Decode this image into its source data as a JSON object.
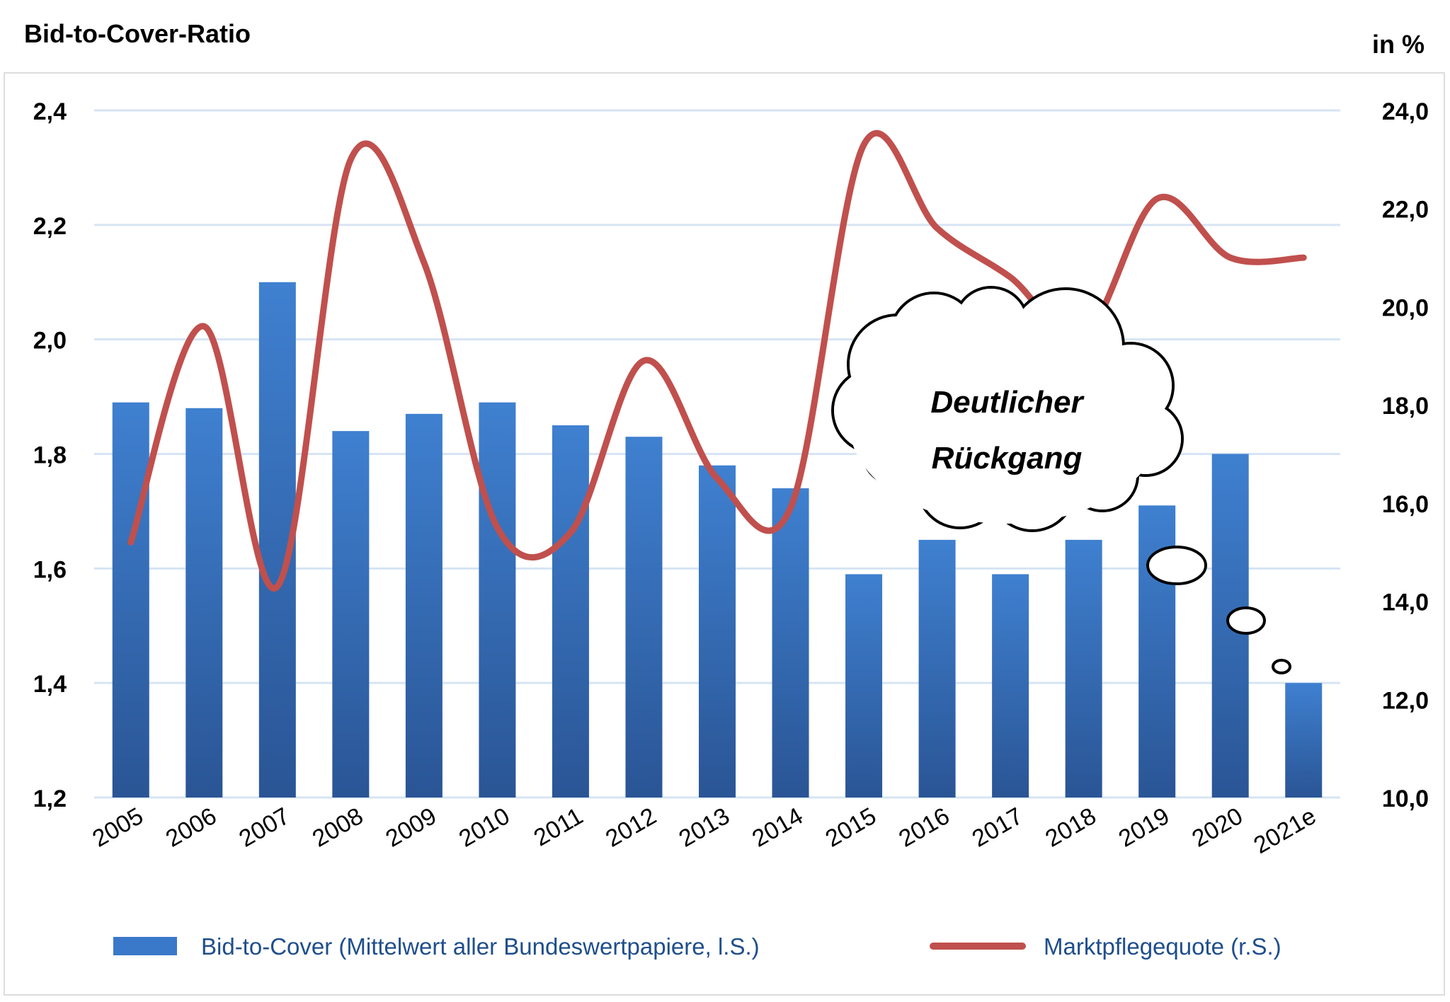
{
  "chart_data": {
    "type": "bar",
    "title": "Bid-to-Cover-Ratio",
    "right_axis_unit": "in %",
    "categories": [
      "2005",
      "2006",
      "2007",
      "2008",
      "2009",
      "2010",
      "2011",
      "2012",
      "2013",
      "2014",
      "2015",
      "2016",
      "2017",
      "2018",
      "2019",
      "2020",
      "2021e"
    ],
    "series": [
      {
        "name": "Bid-to-Cover (Mittelwert aller Bundeswertpapiere, l.S.)",
        "type": "bar",
        "axis": "left",
        "color": "#3a78c9",
        "values": [
          1.89,
          1.88,
          2.1,
          1.84,
          1.87,
          1.89,
          1.85,
          1.83,
          1.78,
          1.74,
          1.59,
          1.65,
          1.59,
          1.65,
          1.71,
          1.8,
          1.4
        ]
      },
      {
        "name": "Marktpflegequote (r.S.)",
        "type": "line",
        "axis": "right",
        "color": "#c0504d",
        "values": [
          15.2,
          19.6,
          14.3,
          23.0,
          20.9,
          15.5,
          15.4,
          18.9,
          16.5,
          15.9,
          23.3,
          21.6,
          20.6,
          19.4,
          22.2,
          21.0,
          21.0
        ]
      }
    ],
    "y_left": {
      "min": 1.2,
      "max": 2.4,
      "ticks": [
        "1,2",
        "1,4",
        "1,6",
        "1,8",
        "2,0",
        "2,2",
        "2,4"
      ]
    },
    "y_right": {
      "min": 10.0,
      "max": 24.0,
      "ticks": [
        "10,0",
        "12,0",
        "14,0",
        "16,0",
        "18,0",
        "20,0",
        "22,0",
        "24,0"
      ]
    },
    "grid": true,
    "legend_position": "bottom",
    "annotation": {
      "line1": "Deutlicher",
      "line2": "Rückgang"
    }
  }
}
